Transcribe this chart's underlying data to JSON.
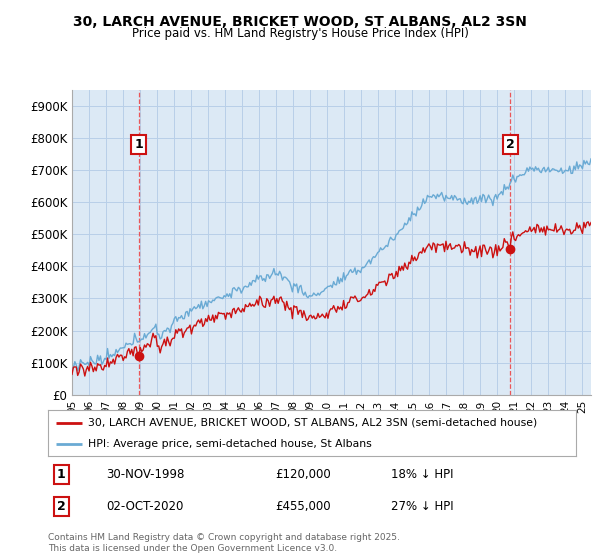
{
  "title": "30, LARCH AVENUE, BRICKET WOOD, ST ALBANS, AL2 3SN",
  "subtitle": "Price paid vs. HM Land Registry's House Price Index (HPI)",
  "ylim": [
    0,
    950000
  ],
  "yticks": [
    0,
    100000,
    200000,
    300000,
    400000,
    500000,
    600000,
    700000,
    800000,
    900000
  ],
  "ytick_labels": [
    "£0",
    "£100K",
    "£200K",
    "£300K",
    "£400K",
    "£500K",
    "£600K",
    "£700K",
    "£800K",
    "£900K"
  ],
  "background_color": "#ffffff",
  "plot_bg_color": "#dce9f5",
  "grid_color": "#b8cfe8",
  "hpi_color": "#6aaad4",
  "price_color": "#cc1111",
  "legend_line1": "30, LARCH AVENUE, BRICKET WOOD, ST ALBANS, AL2 3SN (semi-detached house)",
  "legend_line2": "HPI: Average price, semi-detached house, St Albans",
  "footer": "Contains HM Land Registry data © Crown copyright and database right 2025.\nThis data is licensed under the Open Government Licence v3.0.",
  "vline_color": "#ee3333",
  "t1": 1998.917,
  "t2": 2020.75,
  "price_at_1": 120000,
  "price_at_2": 455000,
  "sale1_text": "1",
  "sale2_text": "2",
  "sale1_date": "30-NOV-1998",
  "sale2_date": "02-OCT-2020",
  "sale1_price": "£120,000",
  "sale2_price": "£455,000",
  "sale1_hpi": "18% ↓ HPI",
  "sale2_hpi": "27% ↓ HPI"
}
